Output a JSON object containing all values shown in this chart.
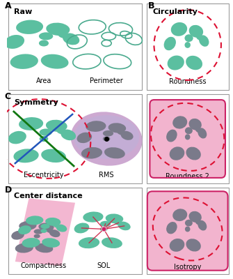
{
  "teal": "#5BBFA0",
  "teal_dark": "#4AAA8E",
  "pink": "#F2B0CC",
  "pink_bg": "#EFA8C8",
  "gray": "#7A7A8A",
  "gray_dark": "#6A6A7A",
  "red_dashed": "#DD1133",
  "pink_solid": "#CC2266",
  "blue_line": "#2255BB",
  "green_line": "#117711",
  "purple_light": "#C8A0CC",
  "purple_dark": "#9080A8",
  "lavender": "#C0B0D8",
  "background": "#FFFFFF",
  "border_color": "#AAAAAA",
  "label_A": "A",
  "label_B": "B",
  "label_C": "C",
  "label_D": "D",
  "title_raw": "Raw",
  "title_circularity": "Circularity",
  "title_symmetry": "Symmetry",
  "title_center": "Center distance",
  "cap_area": "Area",
  "cap_perimeter": "Perimeter",
  "cap_roundness": "Roundness",
  "cap_eccentricity": "Eccentricity",
  "cap_rms": "RMS",
  "cap_roundness2": "Roundness 2",
  "cap_compactness": "Compactness",
  "cap_sol": "SOL",
  "cap_isotropy": "Isotropy"
}
